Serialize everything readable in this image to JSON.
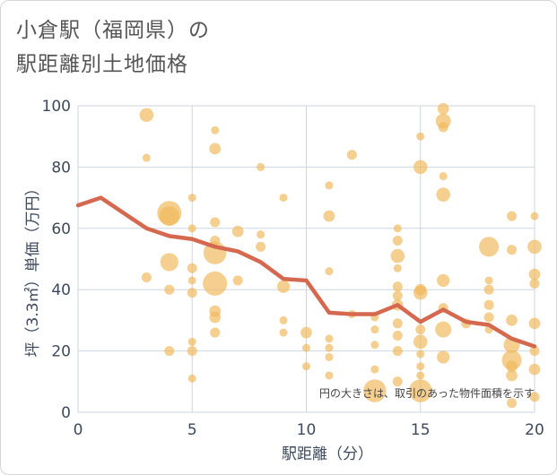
{
  "title": {
    "line1": "小倉駅（福岡県）の",
    "line2": "駅距離別土地価格"
  },
  "chart_data": {
    "type": "scatter",
    "title": "小倉駅（福岡県）の駅距離別土地価格",
    "xlabel": "駅距離（分）",
    "ylabel": "坪（3.3㎡）単価（万円）",
    "xlim": [
      0,
      20
    ],
    "ylim": [
      0,
      100
    ],
    "xticks": [
      0,
      5,
      10,
      15,
      20
    ],
    "yticks": [
      0,
      20,
      40,
      60,
      80,
      100
    ],
    "grid": true,
    "note": "円の大きさは、取引のあった物件面積を示す",
    "colors": {
      "bubble": "#f0b85a",
      "line": "#d4694f",
      "grid": "#cdd6e0"
    },
    "bubbles": [
      {
        "x": 3,
        "y": 97,
        "s": 3
      },
      {
        "x": 3,
        "y": 83,
        "s": 1
      },
      {
        "x": 3,
        "y": 44,
        "s": 1.5
      },
      {
        "x": 4,
        "y": 65,
        "s": 9
      },
      {
        "x": 4,
        "y": 64,
        "s": 6
      },
      {
        "x": 4,
        "y": 49,
        "s": 5
      },
      {
        "x": 4,
        "y": 40,
        "s": 1.5
      },
      {
        "x": 4,
        "y": 20,
        "s": 1.5
      },
      {
        "x": 5,
        "y": 70,
        "s": 1
      },
      {
        "x": 5,
        "y": 60,
        "s": 1
      },
      {
        "x": 5,
        "y": 47,
        "s": 1.5
      },
      {
        "x": 5,
        "y": 43,
        "s": 1
      },
      {
        "x": 5,
        "y": 39,
        "s": 1.5
      },
      {
        "x": 5,
        "y": 23,
        "s": 1
      },
      {
        "x": 5,
        "y": 20,
        "s": 1.5
      },
      {
        "x": 5,
        "y": 11,
        "s": 1
      },
      {
        "x": 6,
        "y": 92,
        "s": 1
      },
      {
        "x": 6,
        "y": 86,
        "s": 2
      },
      {
        "x": 6,
        "y": 62,
        "s": 1.5
      },
      {
        "x": 6,
        "y": 56,
        "s": 1.5
      },
      {
        "x": 6,
        "y": 52,
        "s": 8
      },
      {
        "x": 6,
        "y": 42,
        "s": 9
      },
      {
        "x": 6,
        "y": 33,
        "s": 2
      },
      {
        "x": 6,
        "y": 31,
        "s": 2
      },
      {
        "x": 6,
        "y": 26,
        "s": 1.5
      },
      {
        "x": 7,
        "y": 59,
        "s": 2
      },
      {
        "x": 7,
        "y": 43,
        "s": 1.5
      },
      {
        "x": 8,
        "y": 80,
        "s": 1
      },
      {
        "x": 8,
        "y": 58,
        "s": 1
      },
      {
        "x": 8,
        "y": 54,
        "s": 1.5
      },
      {
        "x": 9,
        "y": 70,
        "s": 1
      },
      {
        "x": 9,
        "y": 41,
        "s": 2.5
      },
      {
        "x": 9,
        "y": 30,
        "s": 1
      },
      {
        "x": 9,
        "y": 26,
        "s": 1
      },
      {
        "x": 10,
        "y": 26,
        "s": 2
      },
      {
        "x": 10,
        "y": 21,
        "s": 1
      },
      {
        "x": 10,
        "y": 15,
        "s": 1
      },
      {
        "x": 11,
        "y": 74,
        "s": 1
      },
      {
        "x": 11,
        "y": 64,
        "s": 2
      },
      {
        "x": 11,
        "y": 46,
        "s": 1
      },
      {
        "x": 11,
        "y": 24,
        "s": 1
      },
      {
        "x": 11,
        "y": 21,
        "s": 1
      },
      {
        "x": 11,
        "y": 18,
        "s": 1
      },
      {
        "x": 11,
        "y": 12,
        "s": 1
      },
      {
        "x": 12,
        "y": 84,
        "s": 1.5
      },
      {
        "x": 12,
        "y": 32,
        "s": 1
      },
      {
        "x": 13,
        "y": 31,
        "s": 1
      },
      {
        "x": 13,
        "y": 27,
        "s": 1
      },
      {
        "x": 13,
        "y": 22,
        "s": 1
      },
      {
        "x": 13,
        "y": 14,
        "s": 1
      },
      {
        "x": 13,
        "y": 7,
        "s": 8
      },
      {
        "x": 14,
        "y": 60,
        "s": 1
      },
      {
        "x": 14,
        "y": 56,
        "s": 1.5
      },
      {
        "x": 14,
        "y": 51,
        "s": 3
      },
      {
        "x": 14,
        "y": 47,
        "s": 1
      },
      {
        "x": 14,
        "y": 41,
        "s": 1.5
      },
      {
        "x": 14,
        "y": 38,
        "s": 1.5
      },
      {
        "x": 14,
        "y": 35,
        "s": 2
      },
      {
        "x": 14,
        "y": 29,
        "s": 1.5
      },
      {
        "x": 14,
        "y": 25,
        "s": 1.5
      },
      {
        "x": 14,
        "y": 20,
        "s": 1.5
      },
      {
        "x": 14,
        "y": 10,
        "s": 1.5
      },
      {
        "x": 15,
        "y": 90,
        "s": 1
      },
      {
        "x": 15,
        "y": 80,
        "s": 3
      },
      {
        "x": 15,
        "y": 40,
        "s": 2
      },
      {
        "x": 15,
        "y": 39,
        "s": 3
      },
      {
        "x": 15,
        "y": 27,
        "s": 1.5
      },
      {
        "x": 15,
        "y": 23,
        "s": 3
      },
      {
        "x": 15,
        "y": 19,
        "s": 1
      },
      {
        "x": 15,
        "y": 15,
        "s": 1
      },
      {
        "x": 15,
        "y": 12,
        "s": 1
      },
      {
        "x": 15,
        "y": 7,
        "s": 8
      },
      {
        "x": 16,
        "y": 99,
        "s": 2
      },
      {
        "x": 16,
        "y": 95,
        "s": 3.5
      },
      {
        "x": 16,
        "y": 93,
        "s": 1.5
      },
      {
        "x": 16,
        "y": 77,
        "s": 1
      },
      {
        "x": 16,
        "y": 71,
        "s": 3
      },
      {
        "x": 16,
        "y": 43,
        "s": 2.5
      },
      {
        "x": 16,
        "y": 34,
        "s": 1.5
      },
      {
        "x": 16,
        "y": 27,
        "s": 4
      },
      {
        "x": 16,
        "y": 18,
        "s": 2.5
      },
      {
        "x": 17,
        "y": 29,
        "s": 1.5
      },
      {
        "x": 18,
        "y": 54,
        "s": 6
      },
      {
        "x": 18,
        "y": 43,
        "s": 1
      },
      {
        "x": 18,
        "y": 40,
        "s": 1.5
      },
      {
        "x": 18,
        "y": 35,
        "s": 1.5
      },
      {
        "x": 18,
        "y": 31,
        "s": 1.5
      },
      {
        "x": 18,
        "y": 27,
        "s": 1
      },
      {
        "x": 19,
        "y": 64,
        "s": 1.5
      },
      {
        "x": 19,
        "y": 53,
        "s": 1.5
      },
      {
        "x": 19,
        "y": 30,
        "s": 2
      },
      {
        "x": 19,
        "y": 22,
        "s": 4
      },
      {
        "x": 19,
        "y": 17,
        "s": 6
      },
      {
        "x": 19,
        "y": 15,
        "s": 2
      },
      {
        "x": 19,
        "y": 12,
        "s": 2
      },
      {
        "x": 19,
        "y": 3,
        "s": 1.5
      },
      {
        "x": 20,
        "y": 64,
        "s": 1
      },
      {
        "x": 20,
        "y": 54,
        "s": 3
      },
      {
        "x": 20,
        "y": 45,
        "s": 2
      },
      {
        "x": 20,
        "y": 42,
        "s": 1.5
      },
      {
        "x": 20,
        "y": 29,
        "s": 2
      },
      {
        "x": 20,
        "y": 20,
        "s": 1.5
      },
      {
        "x": 20,
        "y": 14,
        "s": 2
      },
      {
        "x": 20,
        "y": 5,
        "s": 1.5
      }
    ],
    "line": {
      "x": [
        0,
        1,
        2,
        3,
        4,
        5,
        6,
        7,
        8,
        9,
        10,
        11,
        12,
        13,
        14,
        15,
        16,
        17,
        18,
        19,
        20
      ],
      "y": [
        67.5,
        70,
        65,
        60,
        57.5,
        56.5,
        54,
        52.5,
        49,
        43.5,
        43,
        32.5,
        32,
        32,
        35,
        29.5,
        33.5,
        29.5,
        28.5,
        24,
        21.5
      ]
    }
  }
}
